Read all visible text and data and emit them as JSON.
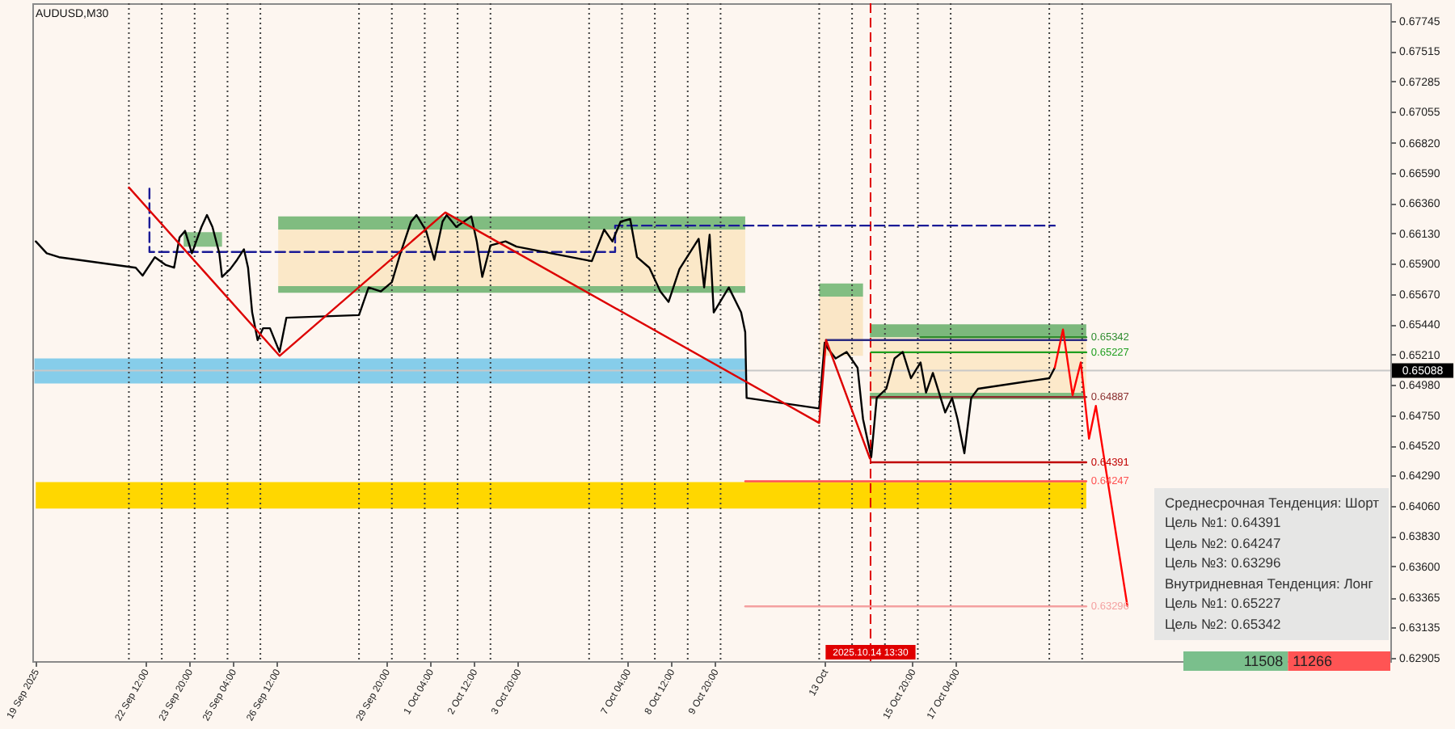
{
  "chart_data": [
    {
      "type": "line",
      "title": "AUDUSD,M30",
      "xlim": [
        "2025-09-19T01:30",
        "2025-10-30T09:00"
      ],
      "xticks": [
        {
          "value": "2025-09-19T04:00",
          "label": "19 Sep 2025"
        },
        {
          "value": "2025-09-22T12:00",
          "label": "22 Sep 12:00"
        },
        {
          "value": "2025-09-23T20:00",
          "label": "23 Sep 20:00"
        },
        {
          "value": "2025-09-25T04:00",
          "label": "25 Sep 04:00"
        },
        {
          "value": "2025-09-26T12:00",
          "label": "26 Sep 12:00"
        },
        {
          "value": "2025-09-29T20:00",
          "label": "29 Sep 20:00"
        },
        {
          "value": "2025-10-01T04:00",
          "label": "1 Oct 04:00"
        },
        {
          "value": "2025-10-02T12:00",
          "label": "2 Oct 12:00"
        },
        {
          "value": "2025-10-03T20:00",
          "label": "3 Oct 20:00"
        },
        {
          "value": "2025-10-07T04:00",
          "label": "7 Oct 04:00"
        },
        {
          "value": "2025-10-08T12:00",
          "label": "8 Oct 12:00"
        },
        {
          "value": "2025-10-09T20:00",
          "label": "9 Oct 20:00"
        },
        {
          "value": "2025-10-13T04:00",
          "label": "13 Oct"
        },
        {
          "value": "2025-10-15T20:00",
          "label": "15 Oct 20:00"
        },
        {
          "value": "2025-10-17T04:00",
          "label": "17 Oct 04:00"
        }
      ],
      "ylim": [
        0.6288,
        0.6788
      ],
      "yticks": [
        0.67745,
        0.67515,
        0.67285,
        0.67055,
        {
          "value": 0.6682,
          "label": "0.66820"
        },
        {
          "value": 0.6659,
          "label": "0.66590"
        },
        {
          "value": 0.6636,
          "label": "0.66360"
        },
        {
          "value": 0.6613,
          "label": "0.66130"
        },
        {
          "value": 0.659,
          "label": "0.65900"
        },
        {
          "value": 0.6567,
          "label": "0.65670"
        },
        {
          "value": 0.6544,
          "label": "0.65440"
        },
        {
          "value": 0.6521,
          "label": "0.65210"
        },
        {
          "value": 0.6498,
          "label": "0.64980"
        },
        {
          "value": 0.6475,
          "label": "0.64750"
        },
        {
          "value": 0.6452,
          "label": "0.64520"
        },
        {
          "value": 0.6429,
          "label": "0.64290"
        },
        {
          "value": 0.6406,
          "label": "0.64060"
        },
        {
          "value": 0.6383,
          "label": "0.63830"
        },
        {
          "value": 0.636,
          "label": "0.63600"
        },
        0.63365,
        0.63135,
        0.62905
      ],
      "ref_lines": [
        {
          "axis": "x",
          "value": "2025-09-22",
          "color": "#404040",
          "line_style": "dotted"
        },
        {
          "axis": "x",
          "value": "2025-09-23",
          "color": "#404040",
          "line_style": "dotted"
        },
        {
          "axis": "x",
          "value": "2025-09-24",
          "color": "#404040",
          "line_style": "dotted"
        },
        {
          "axis": "x",
          "value": "2025-09-25",
          "color": "#404040",
          "line_style": "dotted"
        },
        {
          "axis": "x",
          "value": "2025-09-26",
          "color": "#404040",
          "line_style": "dotted"
        },
        {
          "axis": "x",
          "value": "2025-09-29",
          "color": "#404040",
          "line_style": "dotted"
        },
        {
          "axis": "x",
          "value": "2025-09-30",
          "color": "#404040",
          "line_style": "dotted"
        },
        {
          "axis": "x",
          "value": "2025-10-01",
          "color": "#404040",
          "line_style": "dotted"
        },
        {
          "axis": "x",
          "value": "2025-10-02",
          "color": "#404040",
          "line_style": "dotted"
        },
        {
          "axis": "x",
          "value": "2025-10-03",
          "color": "#404040",
          "line_style": "dotted"
        },
        {
          "axis": "x",
          "value": "2025-10-06",
          "color": "#404040",
          "line_style": "dotted"
        },
        {
          "axis": "x",
          "value": "2025-10-07",
          "color": "#404040",
          "line_style": "dotted"
        },
        {
          "axis": "x",
          "value": "2025-10-08",
          "color": "#404040",
          "line_style": "dotted"
        },
        {
          "axis": "x",
          "value": "2025-10-09",
          "color": "#404040",
          "line_style": "dotted"
        },
        {
          "axis": "x",
          "value": "2025-10-10",
          "color": "#404040",
          "line_style": "dotted"
        },
        {
          "axis": "x",
          "value": "2025-10-13",
          "color": "#404040",
          "line_style": "dotted"
        },
        {
          "axis": "x",
          "value": "2025-10-14",
          "color": "#404040",
          "line_style": "dotted"
        },
        {
          "axis": "x",
          "value": "2025-10-15",
          "color": "#404040",
          "line_style": "dotted"
        },
        {
          "axis": "x",
          "value": "2025-10-16",
          "color": "#404040",
          "line_style": "dotted"
        },
        {
          "axis": "x",
          "value": "2025-10-17",
          "color": "#404040",
          "line_style": "dotted"
        },
        {
          "axis": "x",
          "value": "2025-10-20",
          "color": "#404040",
          "line_style": "dotted"
        },
        {
          "axis": "x",
          "value": "2025-10-21",
          "color": "#404040",
          "line_style": "dotted"
        },
        {
          "axis": "x",
          "value": "2025-10-14T13:30",
          "label": "2025.10.14 13:30",
          "color": "#e00000",
          "line_style": "dashed"
        },
        {
          "axis": "y",
          "value": 0.65088,
          "label": "0.65088",
          "color": "#c8c8c8",
          "line_style": "solid"
        }
      ],
      "series": [
        {
          "type": "line",
          "color": "#88c088",
          "x": [
            "2025-09-23T16:00",
            "2025-09-24T20:00"
          ],
          "values": [
            null,
            null
          ],
          "lower": [
            0.6603,
            0.6603
          ],
          "upper": [
            0.6614,
            0.6614
          ]
        },
        {
          "type": "line",
          "color": "#80bc80",
          "x": [
            "2025-09-26T13:00",
            "2025-10-10T18:00"
          ],
          "values": [
            null,
            null
          ],
          "lower": [
            0.6616,
            0.6616
          ],
          "upper": [
            0.6626,
            0.6626
          ]
        },
        {
          "type": "line",
          "color": "#fbe8c8",
          "x": [
            "2025-09-26T13:00",
            "2025-10-10T18:00"
          ],
          "values": [
            null,
            null
          ],
          "lower": [
            0.6573,
            0.6573
          ],
          "upper": [
            0.6616,
            0.6616
          ]
        },
        {
          "type": "line",
          "color": "#7fba7f",
          "x": [
            "2025-09-26T13:00",
            "2025-10-10T18:00"
          ],
          "values": [
            null,
            null
          ],
          "lower": [
            0.6568,
            0.6568
          ],
          "upper": [
            0.6573,
            0.6573
          ]
        },
        {
          "type": "line",
          "color": "#86cdea",
          "x": [
            "2025-09-19T03:00",
            "2025-10-10T18:00"
          ],
          "values": [
            null,
            null
          ],
          "lower": [
            0.6499,
            0.6499
          ],
          "upper": [
            0.6518,
            0.6518
          ]
        },
        {
          "type": "line",
          "color": "#82be82",
          "x": [
            "2025-10-13T00:00",
            "2025-10-14T08:00"
          ],
          "values": [
            null,
            null
          ],
          "lower": [
            0.6565,
            0.6565
          ],
          "upper": [
            0.6575,
            0.6575
          ]
        },
        {
          "type": "line",
          "color": "#fae6c6",
          "x": [
            "2025-10-13T00:00",
            "2025-10-14T08:00"
          ],
          "values": [
            null,
            null
          ],
          "lower": [
            0.652,
            0.652
          ],
          "upper": [
            0.6565,
            0.6565
          ]
        },
        {
          "type": "line",
          "color": "#7cb87c",
          "x": [
            "2025-10-14T13:00",
            "2025-10-21T03:00"
          ],
          "values": [
            null,
            null
          ],
          "lower": [
            0.6534,
            0.6534
          ],
          "upper": [
            0.6544,
            0.6544
          ]
        },
        {
          "type": "line",
          "color": "#fce9ca",
          "x": [
            "2025-10-14T13:00",
            "2025-10-21T03:00"
          ],
          "values": [
            null,
            null
          ],
          "lower": [
            0.6492,
            0.6492
          ],
          "upper": [
            0.6534,
            0.6534
          ]
        },
        {
          "type": "line",
          "color": "#84c084",
          "x": [
            "2025-10-14T13:00",
            "2025-10-21T01:00"
          ],
          "values": [
            null,
            null
          ],
          "lower": [
            0.6487,
            0.6487
          ],
          "upper": [
            0.6492,
            0.6492
          ]
        },
        {
          "type": "line",
          "color": "#ffd700",
          "x": [
            "2025-09-19T04:00",
            "2025-10-21T03:00"
          ],
          "values": [
            null,
            null
          ],
          "lower": [
            0.6404,
            0.6404
          ],
          "upper": [
            0.6424,
            0.6424
          ]
        },
        {
          "type": "line",
          "color": "#2a2a80",
          "x": [
            "2025-10-13T05:00",
            "2025-10-21T03:00"
          ],
          "values": [
            0.6532,
            0.6532
          ]
        },
        {
          "type": "line",
          "color": "#2e8b2e",
          "x": [
            "2025-10-16T02:00",
            "2025-10-21T03:00"
          ],
          "values": [
            0.65342,
            0.65342
          ]
        },
        {
          "type": "line",
          "color": "#1e9e1e",
          "x": [
            "2025-10-14T14:00",
            "2025-10-21T03:00"
          ],
          "values": [
            0.65227,
            0.65227
          ]
        },
        {
          "type": "line",
          "color": "#8b3030",
          "x": [
            "2025-10-14T14:00",
            "2025-10-21T03:00"
          ],
          "values": [
            0.64887,
            0.64887
          ]
        },
        {
          "type": "line",
          "color": "#c00000",
          "x": [
            "2025-10-14T14:00",
            "2025-10-21T03:00"
          ],
          "values": [
            0.64391,
            0.64391
          ]
        },
        {
          "type": "line",
          "color": "#ff5050",
          "x": [
            "2025-10-10T18:00",
            "2025-10-21T03:00"
          ],
          "values": [
            0.64247,
            0.64247
          ]
        },
        {
          "type": "line",
          "color": "#f4a0a0",
          "x": [
            "2025-10-10T18:00",
            "2025-10-21T03:00"
          ],
          "values": [
            0.63296,
            0.63296
          ]
        },
        {
          "type": "line",
          "color": "#1a1a96",
          "line_style": "dashed",
          "x": [
            "2025-09-22T15:00",
            "2025-09-22T15:00",
            "2025-10-06T19:00",
            "2025-10-06T19:00",
            "2025-10-20T04:00"
          ],
          "values": [
            0.6647,
            0.6599,
            0.6599,
            0.6619,
            0.6619
          ]
        },
        {
          "type": "line",
          "color": "#000000",
          "x": [
            "2025-09-19T04:00",
            "2025-09-19T12:00",
            "2025-09-19T21:00",
            "2025-09-22T05:00",
            "2025-09-22T10:00",
            "2025-09-22T19:00",
            "2025-09-23T03:00",
            "2025-09-23T09:00",
            "2025-09-23T13:00",
            "2025-09-23T17:00",
            "2025-09-23T22:00",
            "2025-09-24T05:00",
            "2025-09-24T09:00",
            "2025-09-24T13:00",
            "2025-09-24T18:00",
            "2025-09-24T20:00",
            "2025-09-25T02:00",
            "2025-09-25T07:00",
            "2025-09-25T12:00",
            "2025-09-25T15:00",
            "2025-09-25T18:00",
            "2025-09-25T22:00",
            "2025-09-26T02:00",
            "2025-09-26T07:00",
            "2025-09-26T14:00",
            "2025-09-26T19:00",
            "2025-09-29T00:00",
            "2025-09-29T07:00",
            "2025-09-29T16:00",
            "2025-09-30T00:00",
            "2025-09-30T06:00",
            "2025-09-30T14:00",
            "2025-09-30T18:00",
            "2025-10-01T01:00",
            "2025-10-01T07:00",
            "2025-10-01T13:00",
            "2025-10-01T16:00",
            "2025-10-01T23:00",
            "2025-10-02T10:00",
            "2025-10-02T14:00",
            "2025-10-02T18:00",
            "2025-10-03T00:00",
            "2025-10-03T11:00",
            "2025-10-03T19:00",
            "2025-10-06T02:00",
            "2025-10-06T11:00",
            "2025-10-06T17:00",
            "2025-10-06T23:00",
            "2025-10-07T06:00",
            "2025-10-07T11:00",
            "2025-10-07T20:00",
            "2025-10-08T04:00",
            "2025-10-08T10:00",
            "2025-10-08T18:00",
            "2025-10-09T08:00",
            "2025-10-09T12:00",
            "2025-10-09T16:00",
            "2025-10-09T19:00",
            "2025-10-10T06:00",
            "2025-10-10T15:00",
            "2025-10-10T18:00",
            "2025-10-10T19:00",
            "2025-10-13T00:00",
            "2025-10-13T04:00",
            "2025-10-13T06:00",
            "2025-10-13T12:00",
            "2025-10-13T20:00",
            "2025-10-14T04:00",
            "2025-10-14T08:00",
            "2025-10-14T14:00",
            "2025-10-14T18:00",
            "2025-10-15T01:00",
            "2025-10-15T07:00",
            "2025-10-15T13:00",
            "2025-10-15T19:00",
            "2025-10-16T02:00",
            "2025-10-16T06:00",
            "2025-10-16T11:00",
            "2025-10-16T20:00",
            "2025-10-17T01:00",
            "2025-10-17T05:00",
            "2025-10-17T10:00",
            "2025-10-17T15:00",
            "2025-10-17T20:00",
            "2025-10-20T00:00",
            "2025-10-20T04:00"
          ],
          "values": [
            0.6607,
            0.6598,
            0.6595,
            0.6587,
            0.6581,
            0.6595,
            0.6589,
            0.6587,
            0.661,
            0.6615,
            0.6598,
            0.6618,
            0.6627,
            0.6618,
            0.6598,
            0.658,
            0.6586,
            0.6593,
            0.6601,
            0.6587,
            0.6553,
            0.6532,
            0.6541,
            0.6541,
            0.6523,
            0.6549,
            0.6551,
            0.6572,
            0.6569,
            0.6576,
            0.6597,
            0.6622,
            0.6627,
            0.6615,
            0.6593,
            0.6622,
            0.6627,
            0.6618,
            0.6626,
            0.6607,
            0.658,
            0.6604,
            0.6607,
            0.6603,
            0.6592,
            0.6616,
            0.6607,
            0.6622,
            0.6624,
            0.6595,
            0.6587,
            0.6569,
            0.6561,
            0.6586,
            0.6609,
            0.6572,
            0.6612,
            0.6553,
            0.6572,
            0.6553,
            0.6538,
            0.6488,
            0.648,
            0.653,
            0.6526,
            0.6518,
            0.6523,
            0.6511,
            0.6472,
            0.6443,
            0.6488,
            0.6495,
            0.6518,
            0.6523,
            0.6503,
            0.6515,
            0.6492,
            0.6507,
            0.6477,
            0.6488,
            0.6472,
            0.6446,
            0.6488,
            0.6495,
            0.6503,
            0.6511
          ]
        },
        {
          "type": "line",
          "color": "#dd0000",
          "x": [
            "2025-09-22T00:00",
            "2025-09-26T14:00",
            "2025-10-01T15:00",
            "2025-10-13T00:00",
            "2025-10-13T05:00",
            "2025-10-14T13:00"
          ],
          "values": [
            0.6648,
            0.652,
            0.6629,
            0.6469,
            0.6532,
            0.6442
          ]
        },
        {
          "type": "line",
          "color": "#ff0000",
          "x": [
            "2025-10-20T04:00",
            "2025-10-20T10:00",
            "2025-10-20T17:00",
            "2025-10-20T23:00",
            "2025-10-21T05:00",
            "2025-10-21T10:00",
            "2025-10-22T09:00"
          ],
          "values": [
            0.6511,
            0.654,
            0.649,
            0.6515,
            0.6457,
            0.6482,
            0.633
          ]
        }
      ],
      "annotations": [
        "Среднесрочная Тенденция: Шорт",
        "Цель №1: 0.64391",
        "Цель №2: 0.64247",
        "Цель №3: 0.63296",
        "Внутридневная Тенденция: Лонг",
        "Цель №1: 0.65227",
        "Цель №2: 0.65342",
        {
          "text": "0.65342",
          "x": "2025-10-21T03:00",
          "y": 0.65342
        },
        {
          "text": "0.65227",
          "x": "2025-10-21T03:00",
          "y": 0.65227
        },
        {
          "text": "0.64887",
          "x": "2025-10-21T03:00",
          "y": 0.64887
        },
        {
          "text": "0.64391",
          "x": "2025-10-21T03:00",
          "y": 0.64391
        },
        {
          "text": "0.64247",
          "x": "2025-10-21T03:00",
          "y": 0.64247
        },
        {
          "text": "0.63296",
          "x": "2025-10-21T03:00",
          "y": 0.63296
        }
      ]
    },
    {
      "type": "bar",
      "orientation": "horizontal",
      "stacked": true,
      "categories": [
        null
      ],
      "data_labels": true,
      "series": [
        {
          "color": "#7abf8c",
          "values": [
            11508
          ]
        },
        {
          "color": "#ff5454",
          "values": [
            11266
          ]
        }
      ]
    }
  ]
}
